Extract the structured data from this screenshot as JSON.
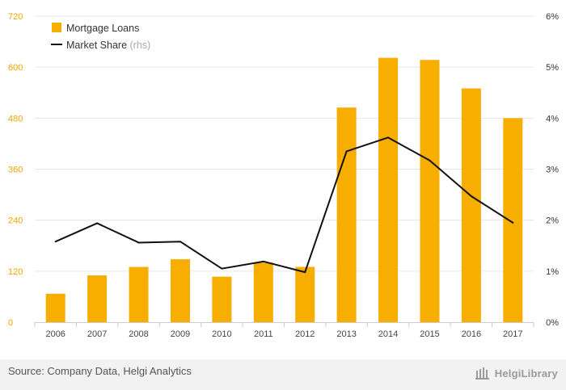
{
  "chart_data": {
    "type": "bar",
    "categories": [
      "2006",
      "2007",
      "2008",
      "2009",
      "2010",
      "2011",
      "2012",
      "2013",
      "2014",
      "2015",
      "2016",
      "2017"
    ],
    "series": [
      {
        "name": "Mortgage Loans",
        "type": "bar",
        "axis": "left",
        "color": "#f7ae00",
        "values": [
          67,
          110,
          130,
          148,
          107,
          140,
          130,
          505,
          622,
          617,
          550,
          480
        ]
      },
      {
        "name": "Market Share",
        "name_suffix": "(rhs)",
        "type": "line",
        "axis": "right",
        "color": "#111111",
        "values": [
          1.58,
          1.94,
          1.56,
          1.58,
          1.05,
          1.19,
          0.98,
          3.35,
          3.62,
          3.17,
          2.47,
          1.95
        ]
      }
    ],
    "y_left": {
      "ticks": [
        "0",
        "120",
        "240",
        "360",
        "480",
        "600",
        "720"
      ],
      "ylim": [
        0,
        720
      ],
      "color": "#f0a500"
    },
    "y_right": {
      "ticks": [
        "0%",
        "1%",
        "2%",
        "3%",
        "4%",
        "5%",
        "6%"
      ],
      "ylim": [
        0,
        6
      ]
    },
    "grid": true,
    "legend": {
      "position": "top-left"
    }
  },
  "footer": {
    "source": "Source: Company Data, Helgi Analytics",
    "brand": "HelgiLibrary"
  }
}
